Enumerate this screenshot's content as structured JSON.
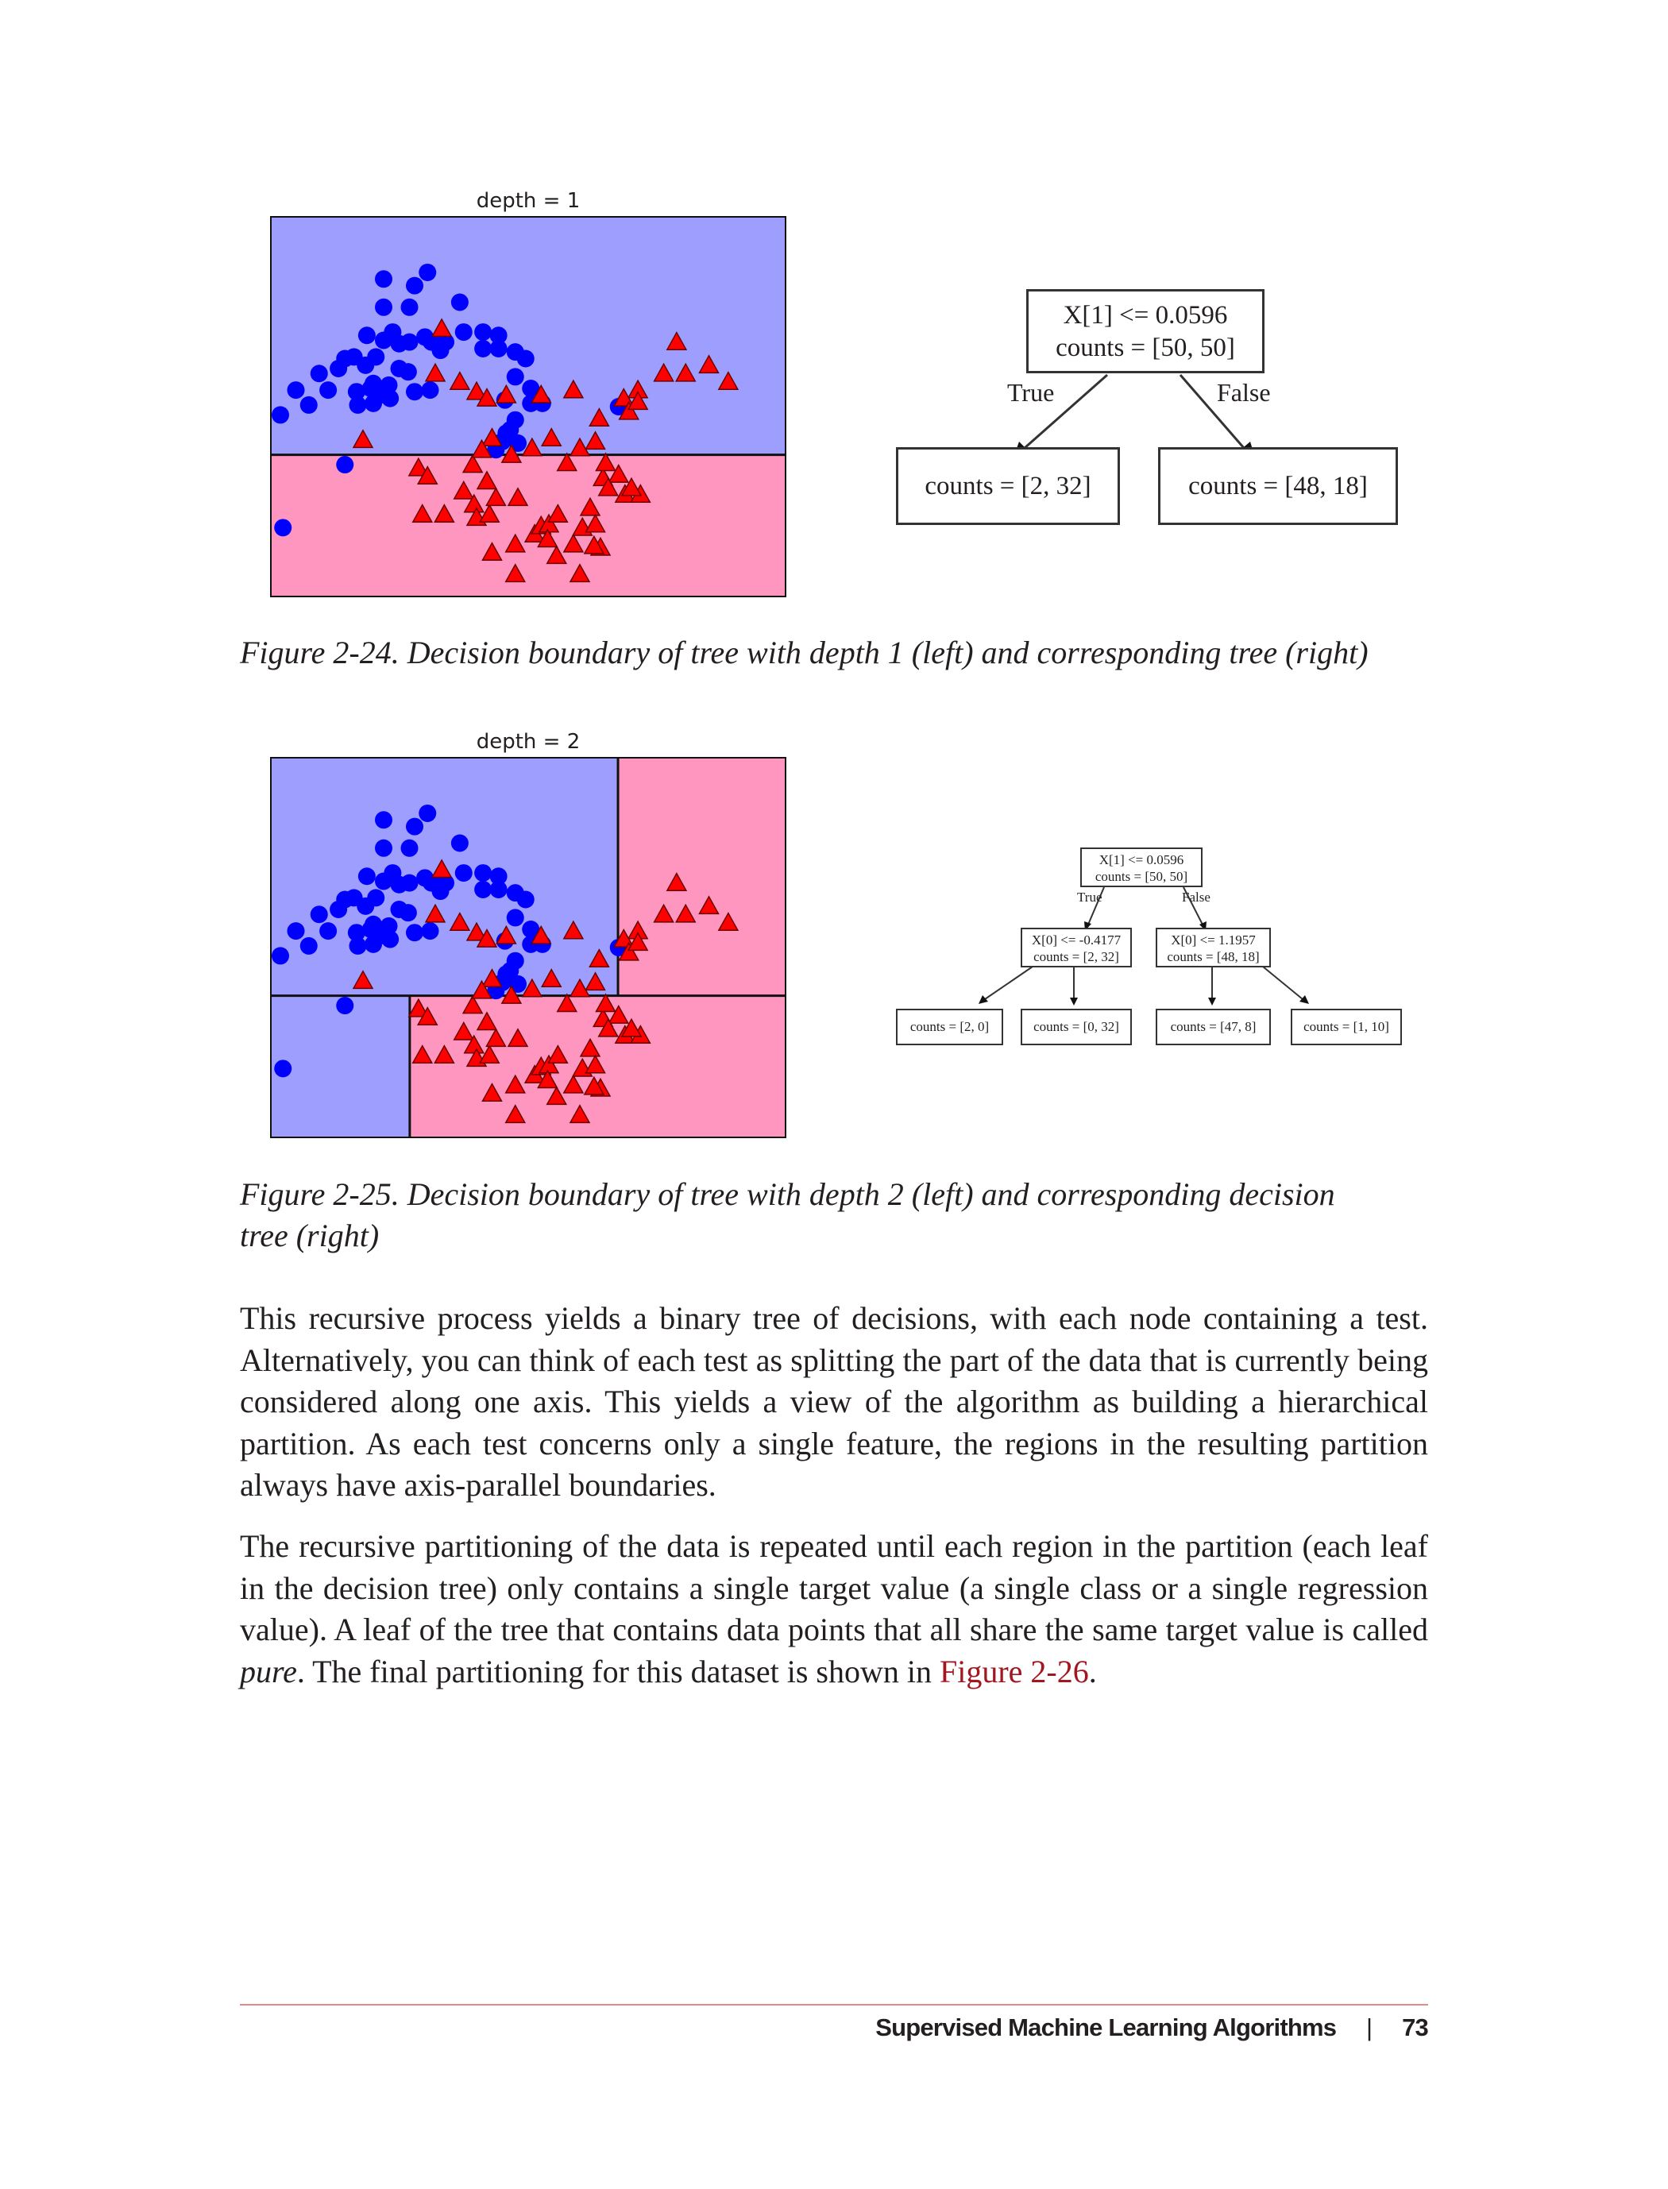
{
  "figure1": {
    "chart_data": {
      "type": "scatter",
      "title": "depth = 1",
      "xlabel": "",
      "ylabel": "",
      "xlim": [
        -1.5,
        2.5
      ],
      "ylim": [
        -0.8,
        1.5
      ],
      "colors": {
        "class0": "#0000ff",
        "class1": "#ff0000",
        "region0": "#9e9eff",
        "region1": "#ff96c0"
      },
      "regions": [
        {
          "x": [
            -1.5,
            2.5
          ],
          "y": [
            0.0596,
            1.5
          ],
          "class": 0
        },
        {
          "x": [
            -1.5,
            2.5
          ],
          "y": [
            -0.8,
            0.0596
          ],
          "class": 1
        }
      ],
      "splits": [
        {
          "axis": "y",
          "value": 0.0596,
          "xrange": [
            -1.5,
            2.5
          ]
        }
      ]
    },
    "caption": "Figure 2-24. Decision boundary of tree with depth 1 (left) and corresponding tree (right)",
    "tree": {
      "root_line1": "X[1] <= 0.0596",
      "root_line2": "counts = [50, 50]",
      "true_label": "True",
      "false_label": "False",
      "left_leaf": "counts = [2, 32]",
      "right_leaf": "counts = [48, 18]"
    }
  },
  "figure2": {
    "chart_data": {
      "type": "scatter",
      "title": "depth = 2",
      "xlabel": "",
      "ylabel": "",
      "xlim": [
        -1.5,
        2.5
      ],
      "ylim": [
        -0.8,
        1.5
      ],
      "colors": {
        "class0": "#0000ff",
        "class1": "#ff0000",
        "region0": "#9e9eff",
        "region1": "#ff96c0"
      },
      "regions": [
        {
          "x": [
            -1.5,
            1.1957
          ],
          "y": [
            0.0596,
            1.5
          ],
          "class": 0
        },
        {
          "x": [
            1.1957,
            2.5
          ],
          "y": [
            0.0596,
            1.5
          ],
          "class": 1
        },
        {
          "x": [
            -1.5,
            -0.4177
          ],
          "y": [
            -0.8,
            0.0596
          ],
          "class": 0
        },
        {
          "x": [
            -0.4177,
            2.5
          ],
          "y": [
            -0.8,
            0.0596
          ],
          "class": 1
        }
      ],
      "splits": [
        {
          "axis": "y",
          "value": 0.0596,
          "xrange": [
            -1.5,
            2.5
          ]
        },
        {
          "axis": "x",
          "value": 1.1957,
          "yrange": [
            0.0596,
            1.5
          ]
        },
        {
          "axis": "x",
          "value": -0.4177,
          "yrange": [
            -0.8,
            0.0596
          ]
        }
      ]
    },
    "caption_line1": "Figure 2-25. Decision boundary of tree with depth 2 (left) and corresponding decision",
    "caption_line2": "tree (right)",
    "tree": {
      "root_line1": "X[1] <= 0.0596",
      "root_line2": "counts = [50, 50]",
      "true_label": "True",
      "false_label": "False",
      "left_line1": "X[0] <= -0.4177",
      "left_line2": "counts = [2, 32]",
      "right_line1": "X[0] <= 1.1957",
      "right_line2": "counts = [48, 18]",
      "leaf1": "counts = [2, 0]",
      "leaf2": "counts = [0, 32]",
      "leaf3": "counts = [47, 8]",
      "leaf4": "counts = [1, 10]"
    }
  },
  "scatter_points": {
    "class0": [
      [
        -0.62,
        1.12
      ],
      [
        -0.38,
        1.08
      ],
      [
        -0.28,
        1.16
      ],
      [
        -0.62,
        0.95
      ],
      [
        -0.42,
        0.95
      ],
      [
        -0.03,
        0.98
      ],
      [
        -0.75,
        0.78
      ],
      [
        -0.62,
        0.75
      ],
      [
        -0.55,
        0.8
      ],
      [
        -0.5,
        0.73
      ],
      [
        -0.42,
        0.74
      ],
      [
        -0.3,
        0.77
      ],
      [
        -0.25,
        0.74
      ],
      [
        -0.14,
        0.74
      ],
      [
        -0.18,
        0.69
      ],
      [
        0.0,
        0.8
      ],
      [
        0.15,
        0.8
      ],
      [
        0.15,
        0.7
      ],
      [
        0.27,
        0.78
      ],
      [
        0.27,
        0.7
      ],
      [
        0.4,
        0.68
      ],
      [
        0.48,
        0.64
      ],
      [
        -1.12,
        0.55
      ],
      [
        -0.97,
        0.58
      ],
      [
        -0.92,
        0.64
      ],
      [
        -0.85,
        0.65
      ],
      [
        -0.76,
        0.6
      ],
      [
        -0.68,
        0.65
      ],
      [
        -0.7,
        0.49
      ],
      [
        -0.58,
        0.48
      ],
      [
        -0.5,
        0.58
      ],
      [
        -0.43,
        0.56
      ],
      [
        -0.65,
        0.42
      ],
      [
        -0.57,
        0.4
      ],
      [
        -0.7,
        0.37
      ],
      [
        -0.38,
        0.44
      ],
      [
        -1.3,
        0.45
      ],
      [
        -1.2,
        0.36
      ],
      [
        -1.05,
        0.45
      ],
      [
        -0.83,
        0.44
      ],
      [
        -0.72,
        0.46
      ],
      [
        -0.26,
        0.45
      ],
      [
        0.4,
        0.53
      ],
      [
        0.52,
        0.46
      ],
      [
        0.32,
        0.39
      ],
      [
        0.52,
        0.37
      ],
      [
        0.4,
        0.27
      ],
      [
        0.36,
        0.21
      ],
      [
        0.42,
        0.13
      ],
      [
        0.3,
        0.14
      ],
      [
        0.33,
        0.19
      ],
      [
        0.25,
        0.09
      ],
      [
        1.2,
        0.35
      ],
      [
        -1.42,
        0.3
      ],
      [
        -0.82,
        0.36
      ],
      [
        -0.92,
        0.0
      ],
      [
        -1.4,
        -0.38
      ],
      [
        0.61,
        0.37
      ]
    ],
    "class1": [
      [
        -0.17,
        0.82
      ],
      [
        -0.22,
        0.55
      ],
      [
        -0.03,
        0.5
      ],
      [
        0.1,
        0.44
      ],
      [
        0.18,
        0.4
      ],
      [
        0.33,
        0.42
      ],
      [
        0.6,
        0.42
      ],
      [
        0.85,
        0.45
      ],
      [
        1.65,
        0.74
      ],
      [
        1.55,
        0.55
      ],
      [
        1.72,
        0.55
      ],
      [
        1.9,
        0.6
      ],
      [
        2.05,
        0.5
      ],
      [
        1.35,
        0.45
      ],
      [
        1.24,
        0.4
      ],
      [
        1.28,
        0.32
      ],
      [
        1.35,
        0.38
      ],
      [
        1.05,
        0.28
      ],
      [
        -0.78,
        0.15
      ],
      [
        0.22,
        0.16
      ],
      [
        0.37,
        0.06
      ],
      [
        0.53,
        0.1
      ],
      [
        0.68,
        0.16
      ],
      [
        0.8,
        0.01
      ],
      [
        0.9,
        0.1
      ],
      [
        1.02,
        0.14
      ],
      [
        1.08,
        -0.08
      ],
      [
        1.1,
        0.01
      ],
      [
        1.2,
        -0.06
      ],
      [
        1.25,
        -0.18
      ],
      [
        1.12,
        -0.14
      ],
      [
        1.37,
        -0.18
      ],
      [
        1.3,
        -0.14
      ],
      [
        -0.35,
        -0.02
      ],
      [
        -0.28,
        -0.07
      ],
      [
        0.07,
        0.0
      ],
      [
        0.14,
        0.09
      ],
      [
        0.0,
        -0.16
      ],
      [
        0.08,
        -0.24
      ],
      [
        0.18,
        -0.1
      ],
      [
        0.1,
        -0.32
      ],
      [
        0.2,
        -0.3
      ],
      [
        0.25,
        -0.2
      ],
      [
        -0.32,
        -0.3
      ],
      [
        -0.15,
        -0.3
      ],
      [
        0.42,
        -0.2
      ],
      [
        0.55,
        -0.42
      ],
      [
        0.6,
        -0.37
      ],
      [
        0.66,
        -0.36
      ],
      [
        0.73,
        -0.3
      ],
      [
        0.85,
        -0.48
      ],
      [
        0.92,
        -0.38
      ],
      [
        0.98,
        -0.26
      ],
      [
        1.02,
        -0.36
      ],
      [
        1.06,
        -0.5
      ],
      [
        0.4,
        -0.48
      ],
      [
        0.22,
        -0.53
      ],
      [
        0.72,
        -0.55
      ],
      [
        1.01,
        -0.49
      ],
      [
        0.9,
        -0.66
      ],
      [
        0.4,
        -0.66
      ],
      [
        0.65,
        -0.45
      ]
    ]
  },
  "body": {
    "p1": "This recursive process yields a binary tree of decisions, with each node containing a test. Alternatively, you can think of each test as splitting the part of the data that is currently being considered along one axis. This yields a view of the algorithm as building a hierarchical partition. As each test concerns only a single feature, the regions in the resulting partition always have axis-parallel boundaries.",
    "p2_a": "The recursive partitioning of the data is repeated until each region in the partition (each leaf in the decision tree) only contains a single target value (a single class or a single regression value). A leaf of the tree that contains data points that all share the same target value is called ",
    "p2_em": "pure",
    "p2_b": ". The final partitioning for this dataset is shown in ",
    "p2_link": "Figure 2-26",
    "p2_c": "."
  },
  "footer": {
    "section": "Supervised Machine Learning Algorithms",
    "separator": "|",
    "page": "73"
  }
}
